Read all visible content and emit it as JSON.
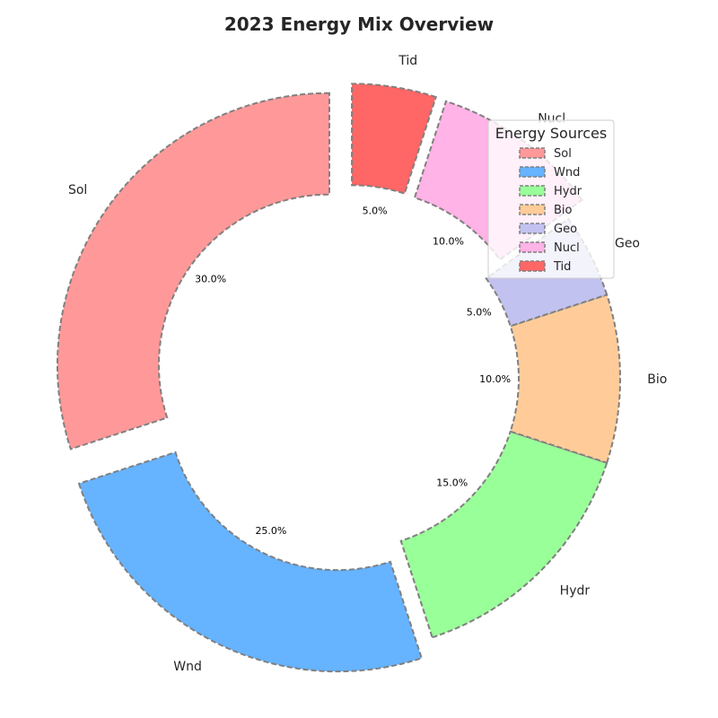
{
  "chart_data": {
    "type": "pie",
    "donut": true,
    "title": "2023 Energy Mix Overview",
    "categories": [
      "Sol",
      "Wnd",
      "Hydr",
      "Bio",
      "Geo",
      "Nucl",
      "Tid"
    ],
    "values": [
      30,
      25,
      15,
      10,
      5,
      10,
      5
    ],
    "percent_labels": [
      "30.0%",
      "25.0%",
      "15.0%",
      "10.0%",
      "5.0%",
      "10.0%",
      "5.0%"
    ],
    "colors": [
      "#ff9999",
      "#66b3ff",
      "#99ff99",
      "#ffcc99",
      "#c2c2f0",
      "#ffb3e6",
      "#ff6666"
    ],
    "exploded": [
      true,
      true,
      false,
      false,
      false,
      true,
      true
    ],
    "start_angle_deg": 90,
    "direction": "counterclockwise",
    "edge_style": "dashed",
    "edge_color": "#808080",
    "legend": {
      "title": "Energy Sources",
      "placement": "upper-right",
      "entries": [
        "Sol",
        "Wnd",
        "Hydr",
        "Bio",
        "Geo",
        "Nucl",
        "Tid"
      ]
    }
  }
}
